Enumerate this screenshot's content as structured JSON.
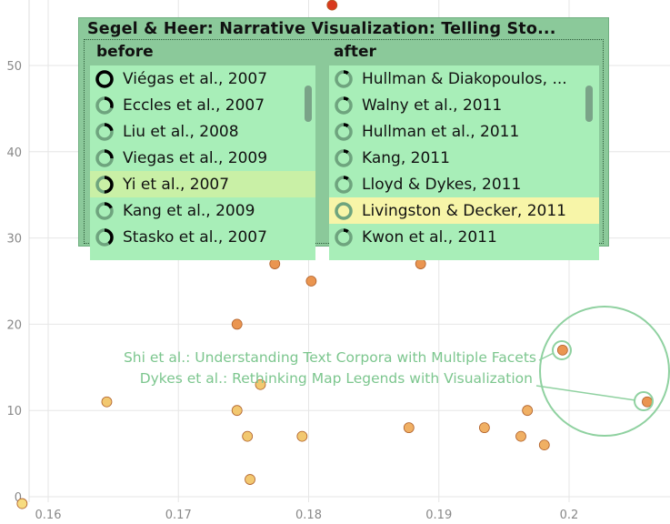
{
  "chart_data": {
    "type": "scatter",
    "xlim": [
      0.1575,
      0.2065
    ],
    "ylim": [
      -1,
      57.5
    ],
    "x_ticks": [
      0.16,
      0.17,
      0.18,
      0.19,
      0.2
    ],
    "x_tick_labels": [
      "0.16",
      "0.17",
      "0.18",
      "0.19",
      "0.2"
    ],
    "y_ticks": [
      0,
      10,
      20,
      30,
      40,
      50
    ],
    "y_tick_labels": [
      "0",
      "10",
      "20",
      "30",
      "40",
      "50"
    ],
    "grid": true,
    "points": [
      {
        "x": 0.158,
        "y": -0.8,
        "color": "#f7dc80"
      },
      {
        "x": 0.1645,
        "y": 11,
        "color": "#f2c870"
      },
      {
        "x": 0.1745,
        "y": 10,
        "color": "#f2c870"
      },
      {
        "x": 0.1753,
        "y": 7,
        "color": "#f2c870"
      },
      {
        "x": 0.1755,
        "y": 2,
        "color": "#f2c870"
      },
      {
        "x": 0.1763,
        "y": 13,
        "color": "#f2c870"
      },
      {
        "x": 0.1745,
        "y": 20,
        "color": "#ea9550"
      },
      {
        "x": 0.1774,
        "y": 27,
        "color": "#ea9550"
      },
      {
        "x": 0.1795,
        "y": 7,
        "color": "#f2c870"
      },
      {
        "x": 0.1802,
        "y": 25,
        "color": "#ea9550"
      },
      {
        "x": 0.1818,
        "y": 57,
        "color": "#d83a1e"
      },
      {
        "x": 0.1877,
        "y": 8,
        "color": "#f0b064"
      },
      {
        "x": 0.1886,
        "y": 27,
        "color": "#ea9550"
      },
      {
        "x": 0.1935,
        "y": 8,
        "color": "#f0b064"
      },
      {
        "x": 0.1963,
        "y": 7,
        "color": "#f0b064"
      },
      {
        "x": 0.1968,
        "y": 10,
        "color": "#f0b064"
      },
      {
        "x": 0.1981,
        "y": 6,
        "color": "#f0b064"
      },
      {
        "x": 0.1995,
        "y": 17,
        "color": "#ea9550"
      },
      {
        "x": 0.206,
        "y": 11,
        "color": "#ea9550"
      }
    ],
    "annotations": [
      "Shi et al.: Understanding Text Corpora with Multiple Facets",
      "Dykes et al.: Rethinking Map Legends with Visualization"
    ]
  },
  "panel": {
    "title": "Segel & Heer:  Narrative Visualization: Telling Sto...",
    "before_label": "before",
    "after_label": "after",
    "before": [
      {
        "label": "Viégas et al., 2007",
        "arc": 1.0
      },
      {
        "label": "Eccles et al., 2007",
        "arc": 0.3
      },
      {
        "label": "Liu et al., 2008",
        "arc": 0.22
      },
      {
        "label": "Viegas et al., 2009",
        "arc": 0.25
      },
      {
        "label": "Yi et al., 2007",
        "arc": 0.5,
        "highlight": true
      },
      {
        "label": "Kang et al., 2009",
        "arc": 0.18
      },
      {
        "label": "Stasko et al., 2007",
        "arc": 0.4
      }
    ],
    "after": [
      {
        "label": "Hullman & Diakopoulos, ...",
        "arc": 0.1
      },
      {
        "label": "Walny et al., 2011",
        "arc": 0.1
      },
      {
        "label": "Hullman et al., 2011",
        "arc": 0.1
      },
      {
        "label": "Kang, 2011",
        "arc": 0.1
      },
      {
        "label": "Lloyd & Dykes, 2011",
        "arc": 0.1
      },
      {
        "label": "Livingston & Decker, 2011",
        "arc": 0.0,
        "highlight": true
      },
      {
        "label": "Kwon et al., 2011",
        "arc": 0.1
      }
    ]
  }
}
